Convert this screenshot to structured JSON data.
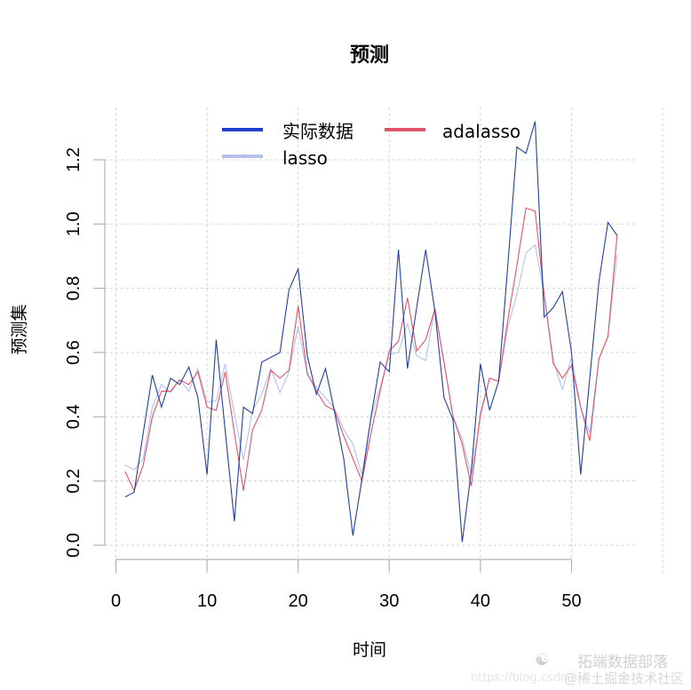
{
  "chart_data": {
    "type": "line",
    "title": "预测",
    "xlabel": "时间",
    "ylabel": "预测集",
    "xlim": [
      0,
      55
    ],
    "ylim": [
      0,
      1.32
    ],
    "x_ticks": [
      0,
      10,
      20,
      30,
      40,
      50
    ],
    "y_ticks": [
      0.0,
      0.2,
      0.4,
      0.6,
      0.8,
      1.0,
      1.2
    ],
    "y_tick_labels": [
      "0.0",
      "0.2",
      "0.4",
      "0.6",
      "0.8",
      "1.0",
      "1.2"
    ],
    "x_tick_labels": [
      "0",
      "10",
      "20",
      "30",
      "40",
      "50"
    ],
    "grid": true,
    "legend_position": "top",
    "x": [
      1,
      2,
      3,
      4,
      5,
      6,
      7,
      8,
      9,
      10,
      11,
      12,
      13,
      14,
      15,
      16,
      17,
      18,
      19,
      20,
      21,
      22,
      23,
      24,
      25,
      26,
      27,
      28,
      29,
      30,
      31,
      32,
      33,
      34,
      35,
      36,
      37,
      38,
      39,
      40,
      41,
      42,
      43,
      44,
      45,
      46,
      47,
      48,
      49,
      50,
      51,
      52,
      53,
      54,
      55
    ],
    "series": [
      {
        "name": "lasso",
        "color": "#b4c1ee",
        "values": [
          0.25,
          0.235,
          0.27,
          0.43,
          0.5,
          0.475,
          0.515,
          0.48,
          0.55,
          0.445,
          0.45,
          0.565,
          0.41,
          0.265,
          0.42,
          0.47,
          0.55,
          0.475,
          0.54,
          0.68,
          0.53,
          0.49,
          0.46,
          0.425,
          0.36,
          0.315,
          0.22,
          0.4,
          0.49,
          0.595,
          0.6,
          0.69,
          0.59,
          0.575,
          0.74,
          0.57,
          0.4,
          0.33,
          0.22,
          0.4,
          0.52,
          0.51,
          0.68,
          0.78,
          0.91,
          0.935,
          0.78,
          0.575,
          0.485,
          0.585,
          0.43,
          0.35,
          0.58,
          0.65,
          0.905
        ]
      },
      {
        "name": "adalasso",
        "color": "#df5469",
        "values": [
          0.23,
          0.17,
          0.25,
          0.4,
          0.48,
          0.48,
          0.515,
          0.5,
          0.54,
          0.43,
          0.42,
          0.54,
          0.35,
          0.17,
          0.36,
          0.42,
          0.545,
          0.52,
          0.545,
          0.745,
          0.535,
          0.48,
          0.435,
          0.42,
          0.34,
          0.27,
          0.2,
          0.35,
          0.48,
          0.605,
          0.635,
          0.77,
          0.605,
          0.64,
          0.735,
          0.57,
          0.4,
          0.315,
          0.185,
          0.41,
          0.52,
          0.51,
          0.7,
          0.87,
          1.05,
          1.04,
          0.78,
          0.565,
          0.52,
          0.56,
          0.43,
          0.325,
          0.58,
          0.65,
          0.965
        ]
      },
      {
        "name": "实际数据",
        "color": "#23419a",
        "legend_color": "#1f3fcc",
        "values": [
          0.15,
          0.165,
          0.35,
          0.53,
          0.43,
          0.52,
          0.5,
          0.555,
          0.46,
          0.22,
          0.64,
          0.355,
          0.075,
          0.43,
          0.41,
          0.57,
          0.585,
          0.6,
          0.795,
          0.86,
          0.59,
          0.47,
          0.55,
          0.415,
          0.27,
          0.03,
          0.205,
          0.4,
          0.57,
          0.54,
          0.92,
          0.55,
          0.74,
          0.92,
          0.73,
          0.46,
          0.39,
          0.01,
          0.23,
          0.565,
          0.42,
          0.51,
          0.87,
          1.24,
          1.22,
          1.32,
          0.71,
          0.74,
          0.79,
          0.6,
          0.22,
          0.52,
          0.82,
          1.005,
          0.965
        ]
      }
    ],
    "legend": [
      {
        "label": "实际数据",
        "color": "#1f3fcc"
      },
      {
        "label": "adalasso",
        "color": "#df5469"
      },
      {
        "label": "lasso",
        "color": "#b4c1ee"
      }
    ]
  },
  "watermark": {
    "brand": "拓端数据部落",
    "community": "@稀土掘金技术社区",
    "url": "https://blog.csdn"
  }
}
